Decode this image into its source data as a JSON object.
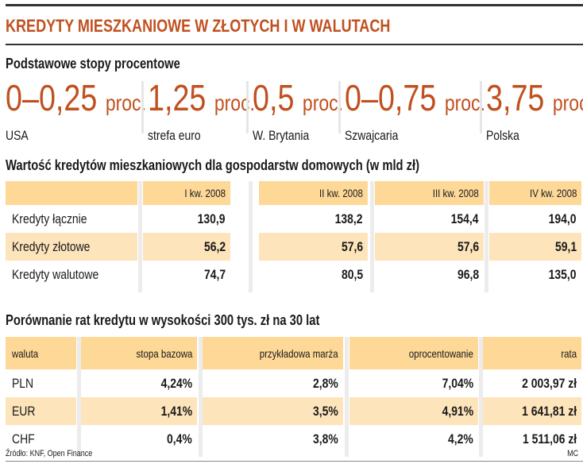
{
  "title": "KREDYTY MIESZKANIOWE W ZŁOTYCH I W WALUTACH",
  "rates_section": {
    "heading": "Podstawowe stopy procentowe",
    "unit": "proc.",
    "items": [
      {
        "value": "0–0,25",
        "label": "USA"
      },
      {
        "value": "1,25",
        "label": "strefa euro"
      },
      {
        "value": "0,5",
        "label": "W. Brytania"
      },
      {
        "value": "0–0,75",
        "label": "Szwajcaria"
      },
      {
        "value": "3,75",
        "label": "Polska"
      }
    ]
  },
  "loans_table": {
    "heading": "Wartość kredytów mieszkaniowych dla gospodarstw domowych (w mld zł)",
    "columns": [
      "",
      "I kw. 2008",
      "II kw. 2008",
      "III kw. 2008",
      "IV kw. 2008"
    ],
    "rows": [
      [
        "Kredyty łącznie",
        "130,9",
        "138,2",
        "154,4",
        "194,0"
      ],
      [
        "Kredyty złotowe",
        "56,2",
        "57,6",
        "57,6",
        "59,1"
      ],
      [
        "Kredyty walutowe",
        "74,7",
        "80,5",
        "96,8",
        "135,0"
      ]
    ]
  },
  "installments_table": {
    "heading": "Porównanie rat kredytu w wysokości 300 tys. zł na 30 lat",
    "columns": [
      "waluta",
      "stopa bazowa",
      "przykładowa marża",
      "oprocentowanie",
      "rata"
    ],
    "rows": [
      [
        "PLN",
        "4,24%",
        "2,8%",
        "7,04%",
        "2 003,97 zł"
      ],
      [
        "EUR",
        "1,41%",
        "3,5%",
        "4,91%",
        "1 641,81 zł"
      ],
      [
        "CHF",
        "0,4%",
        "3,8%",
        "4,2%",
        "1 511,06 zł"
      ]
    ]
  },
  "source": "Źródło: KNF, Open Finance",
  "author": "MC",
  "colors": {
    "accent": "#c1501f",
    "header_fill": "#fdd897",
    "row_fill": "#fde4bb"
  }
}
